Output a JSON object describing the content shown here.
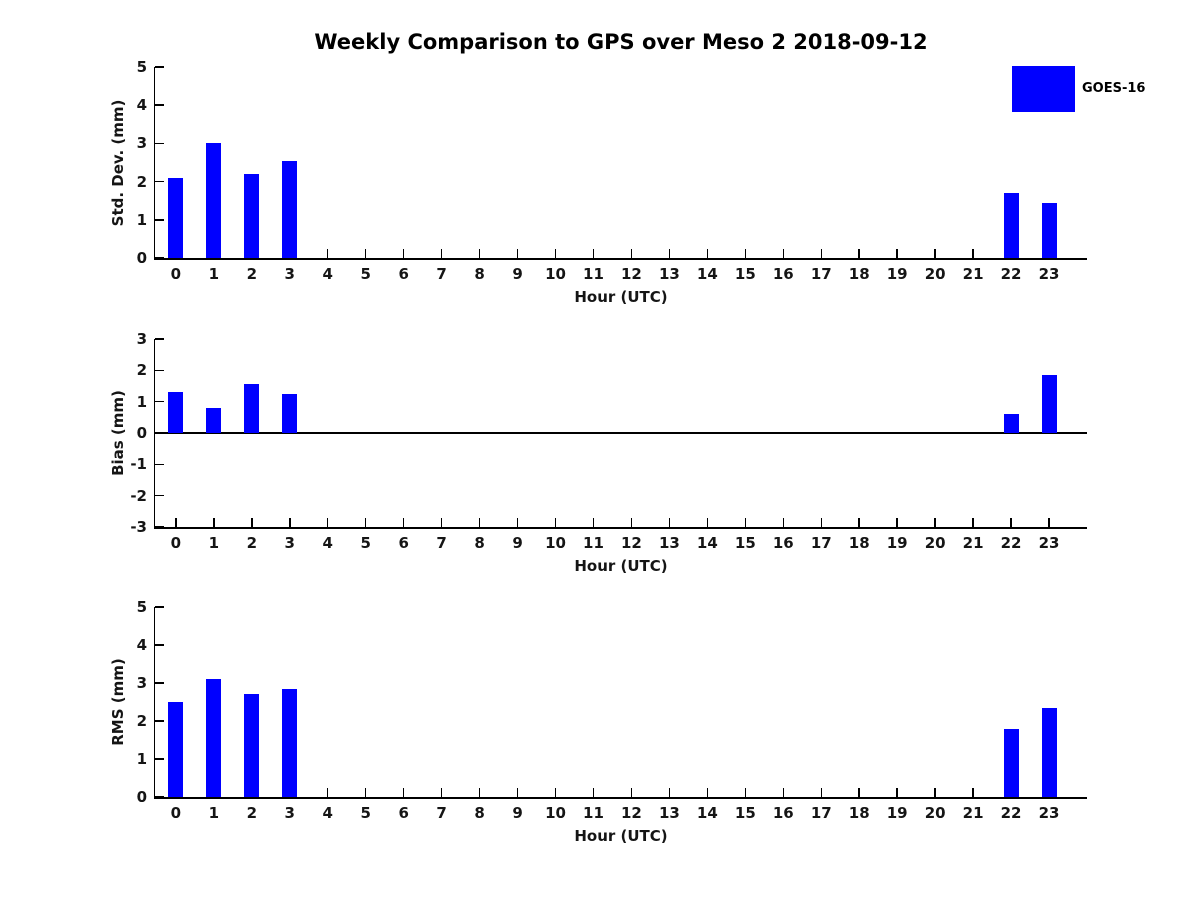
{
  "page": {
    "title": "Weekly Comparison to GPS over Meso 2 2018-09-12"
  },
  "legend": {
    "label": "GOES-16",
    "position": "top-right"
  },
  "colors": {
    "bar": "#0000FF",
    "axis": "#000000",
    "text": "#151515",
    "background": "#FFFFFF"
  },
  "chart_data": [
    {
      "type": "bar",
      "name": "std-dev",
      "title": "",
      "ylabel": "Std. Dev. (mm)",
      "xlabel": "Hour (UTC)",
      "series_name": "GOES-16",
      "x": [
        0,
        1,
        2,
        3,
        22,
        23
      ],
      "values": [
        2.1,
        3.0,
        2.2,
        2.55,
        1.7,
        1.45
      ],
      "xticks": [
        0,
        1,
        2,
        3,
        4,
        5,
        6,
        7,
        8,
        9,
        10,
        11,
        12,
        13,
        14,
        15,
        16,
        17,
        18,
        19,
        20,
        21,
        22,
        23
      ],
      "yticks": [
        0,
        1,
        2,
        3,
        4,
        5
      ],
      "ylim": [
        0,
        5
      ],
      "xlim": [
        -0.55,
        24.0
      ],
      "grid": false,
      "zero_line": false
    },
    {
      "type": "bar",
      "name": "bias",
      "title": "",
      "ylabel": "Bias (mm)",
      "xlabel": "Hour (UTC)",
      "series_name": "GOES-16",
      "x": [
        0,
        1,
        2,
        3,
        22,
        23
      ],
      "values": [
        1.3,
        0.8,
        1.55,
        1.25,
        0.6,
        1.85
      ],
      "xticks": [
        0,
        1,
        2,
        3,
        4,
        5,
        6,
        7,
        8,
        9,
        10,
        11,
        12,
        13,
        14,
        15,
        16,
        17,
        18,
        19,
        20,
        21,
        22,
        23
      ],
      "yticks": [
        -3,
        -2,
        -1,
        0,
        1,
        2,
        3
      ],
      "ylim": [
        -3,
        3
      ],
      "xlim": [
        -0.55,
        24.0
      ],
      "grid": false,
      "zero_line": true
    },
    {
      "type": "bar",
      "name": "rms",
      "title": "",
      "ylabel": "RMS (mm)",
      "xlabel": "Hour (UTC)",
      "series_name": "GOES-16",
      "x": [
        0,
        1,
        2,
        3,
        22,
        23
      ],
      "values": [
        2.5,
        3.1,
        2.7,
        2.85,
        1.8,
        2.35
      ],
      "xticks": [
        0,
        1,
        2,
        3,
        4,
        5,
        6,
        7,
        8,
        9,
        10,
        11,
        12,
        13,
        14,
        15,
        16,
        17,
        18,
        19,
        20,
        21,
        22,
        23
      ],
      "yticks": [
        0,
        1,
        2,
        3,
        4,
        5
      ],
      "ylim": [
        0,
        5
      ],
      "xlim": [
        -0.55,
        24.0
      ],
      "grid": false,
      "zero_line": false
    }
  ]
}
